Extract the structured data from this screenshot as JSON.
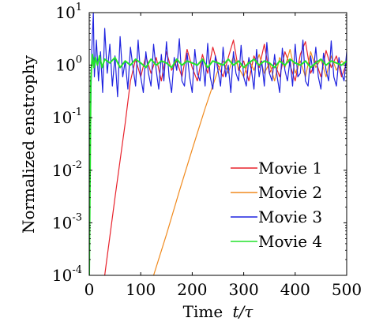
{
  "chart_data": {
    "type": "line",
    "xlabel_text": "Time",
    "xlabel_math": "t/τ",
    "ylabel": "Normalized enstrophy",
    "xlim": [
      0,
      500
    ],
    "ylim": [
      0.0001,
      10
    ],
    "yscale": "log",
    "x_ticks": [
      "0",
      "100",
      "200",
      "300",
      "400",
      "500"
    ],
    "y_ticks": [
      {
        "base": "10",
        "exp": "-4"
      },
      {
        "base": "10",
        "exp": "-3"
      },
      {
        "base": "10",
        "exp": "-2"
      },
      {
        "base": "10",
        "exp": "-1"
      },
      {
        "base": "10",
        "exp": "0"
      },
      {
        "base": "10",
        "exp": "1"
      }
    ],
    "grid": false,
    "legend_position": "bottom-right",
    "series": [
      {
        "name": "Movie 1",
        "color": "#e8222c",
        "x": [
          30,
          50,
          70,
          80,
          90,
          100,
          110,
          120,
          130,
          140,
          150,
          160,
          170,
          180,
          190,
          200,
          210,
          220,
          230,
          240,
          250,
          260,
          270,
          280,
          290,
          300,
          310,
          320,
          330,
          340,
          350,
          360,
          370,
          380,
          390,
          400,
          410,
          420,
          430,
          440,
          450,
          460,
          470,
          480,
          490,
          500
        ],
        "y": [
          0.0001,
          0.003,
          0.08,
          0.5,
          1.3,
          0.6,
          1.5,
          0.7,
          1.4,
          0.5,
          1.8,
          0.8,
          1.2,
          0.6,
          2.0,
          0.9,
          0.5,
          1.6,
          0.7,
          2.2,
          1.0,
          0.6,
          1.4,
          3.0,
          0.8,
          1.2,
          0.5,
          1.5,
          0.9,
          2.5,
          0.7,
          1.1,
          0.6,
          1.8,
          1.0,
          0.5,
          1.6,
          2.8,
          0.7,
          1.2,
          0.6,
          1.9,
          0.9,
          1.5,
          0.6,
          1.1
        ]
      },
      {
        "name": "Movie 2",
        "color": "#f08a1e",
        "x": [
          125,
          150,
          175,
          200,
          225,
          250,
          260,
          270,
          280,
          290,
          300,
          310,
          320,
          330,
          340,
          350,
          360,
          370,
          380,
          390,
          400,
          410,
          420,
          430,
          440,
          450,
          460,
          470,
          480,
          490,
          500
        ],
        "y": [
          0.0001,
          0.0006,
          0.004,
          0.025,
          0.15,
          0.8,
          1.2,
          0.7,
          1.5,
          0.9,
          0.6,
          1.3,
          0.8,
          1.6,
          0.7,
          1.1,
          0.5,
          1.4,
          0.9,
          2.0,
          0.7,
          1.2,
          0.6,
          1.8,
          0.9,
          1.3,
          0.6,
          1.5,
          0.8,
          1.2,
          1.0
        ]
      },
      {
        "name": "Movie 3",
        "color": "#1f23e0",
        "x": [
          0,
          2,
          5,
          8,
          10,
          14,
          18,
          22,
          26,
          30,
          35,
          40,
          45,
          50,
          55,
          60,
          65,
          70,
          75,
          80,
          85,
          90,
          95,
          100,
          105,
          110,
          115,
          120,
          125,
          130,
          135,
          140,
          145,
          150,
          155,
          160,
          165,
          170,
          175,
          180,
          185,
          190,
          195,
          200,
          205,
          210,
          215,
          220,
          225,
          230,
          235,
          240,
          245,
          250,
          255,
          260,
          265,
          270,
          275,
          280,
          285,
          290,
          295,
          300,
          305,
          310,
          315,
          320,
          325,
          330,
          335,
          340,
          345,
          350,
          355,
          360,
          365,
          370,
          375,
          380,
          385,
          390,
          395,
          400,
          405,
          410,
          415,
          420,
          425,
          430,
          435,
          440,
          445,
          450,
          455,
          460,
          465,
          470,
          475,
          480,
          485,
          490,
          495,
          500
        ],
        "y": [
          0.0001,
          0.05,
          2.0,
          10.0,
          0.6,
          3.0,
          0.5,
          1.8,
          0.3,
          5.0,
          0.7,
          2.5,
          0.4,
          1.5,
          0.25,
          3.5,
          0.6,
          1.2,
          0.35,
          2.2,
          0.9,
          0.4,
          3.0,
          0.6,
          0.3,
          1.8,
          0.7,
          0.4,
          2.5,
          0.8,
          0.35,
          1.6,
          0.5,
          2.8,
          0.6,
          0.3,
          1.4,
          0.8,
          3.2,
          0.5,
          0.4,
          1.7,
          0.6,
          0.3,
          2.0,
          0.7,
          0.5,
          1.3,
          0.4,
          2.6,
          0.6,
          0.35,
          1.5,
          0.8,
          0.4,
          2.2,
          0.6,
          1.0,
          0.3,
          1.8,
          0.7,
          0.5,
          2.4,
          0.6,
          0.4,
          1.4,
          0.8,
          0.35,
          2.0,
          0.6,
          1.2,
          0.4,
          2.7,
          0.7,
          0.5,
          1.6,
          0.6,
          0.3,
          2.1,
          0.8,
          0.5,
          1.3,
          0.4,
          2.5,
          0.6,
          0.7,
          3.0,
          0.5,
          0.4,
          1.5,
          0.7,
          2.2,
          0.6,
          0.35,
          1.7,
          0.8,
          0.5,
          2.9,
          0.6,
          0.4,
          1.4,
          0.7,
          0.5,
          1.8
        ]
      },
      {
        "name": "Movie 4",
        "color": "#22e22b",
        "x": [
          0,
          3,
          6,
          9,
          12,
          16,
          20,
          25,
          30,
          40,
          50,
          60,
          70,
          80,
          90,
          100,
          110,
          120,
          130,
          140,
          150,
          160,
          170,
          180,
          190,
          200,
          210,
          220,
          230,
          240,
          250,
          260,
          270,
          280,
          290,
          300,
          310,
          320,
          330,
          340,
          350,
          360,
          370,
          380,
          390,
          400,
          410,
          420,
          430,
          440,
          450,
          460,
          470,
          480,
          490,
          500
        ],
        "y": [
          0.0001,
          0.5,
          1.6,
          0.9,
          1.4,
          1.0,
          1.5,
          0.9,
          1.3,
          1.1,
          1.4,
          0.9,
          1.2,
          1.0,
          1.3,
          1.1,
          0.9,
          1.3,
          1.0,
          1.2,
          1.1,
          0.9,
          1.3,
          1.0,
          1.2,
          1.1,
          1.0,
          1.3,
          0.9,
          1.2,
          1.1,
          1.0,
          1.3,
          1.0,
          1.2,
          0.9,
          1.1,
          1.3,
          1.0,
          1.2,
          1.1,
          0.9,
          1.2,
          1.0,
          1.3,
          1.1,
          1.0,
          1.2,
          0.9,
          1.1,
          1.3,
          1.0,
          1.2,
          1.1,
          1.0,
          1.2
        ]
      }
    ]
  }
}
